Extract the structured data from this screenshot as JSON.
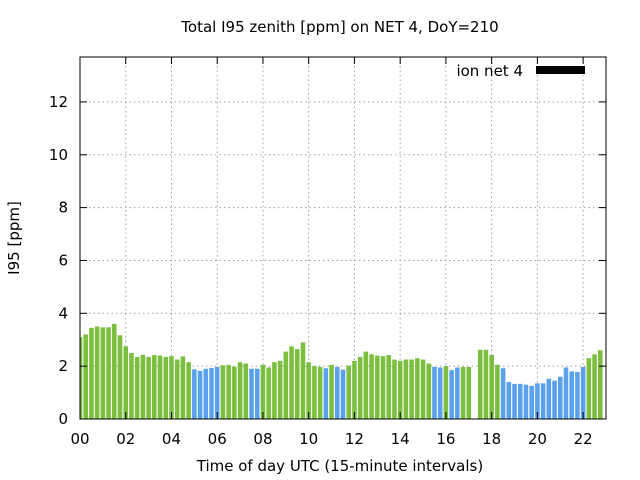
{
  "chart_data": {
    "type": "bar",
    "title": "Total I95 zenith [ppm] on NET 4, DoY=210",
    "xlabel": "Time of day UTC (15-minute intervals)",
    "ylabel": "I95 [ppm]",
    "xlim": [
      0,
      23
    ],
    "ylim": [
      0,
      13.7
    ],
    "xticks": [
      {
        "v": 0,
        "label": "00"
      },
      {
        "v": 2,
        "label": "02"
      },
      {
        "v": 4,
        "label": "04"
      },
      {
        "v": 6,
        "label": "06"
      },
      {
        "v": 8,
        "label": "08"
      },
      {
        "v": 10,
        "label": "10"
      },
      {
        "v": 12,
        "label": "12"
      },
      {
        "v": 14,
        "label": "14"
      },
      {
        "v": 16,
        "label": "16"
      },
      {
        "v": 18,
        "label": "18"
      },
      {
        "v": 20,
        "label": "20"
      },
      {
        "v": 22,
        "label": "22"
      }
    ],
    "yticks": [
      0,
      2,
      4,
      6,
      8,
      10,
      12
    ],
    "grid": true,
    "legend": {
      "label": "ion net 4",
      "position": "top-right",
      "color": "#000000"
    },
    "colors": {
      "green": "#7cbf40",
      "blue": "#5aa0ea"
    },
    "bar_width_hours": 0.2,
    "bars": [
      {
        "x": 0.0,
        "v": 3.1,
        "c": "green"
      },
      {
        "x": 0.25,
        "v": 3.2,
        "c": "green"
      },
      {
        "x": 0.5,
        "v": 3.45,
        "c": "green"
      },
      {
        "x": 0.75,
        "v": 3.5,
        "c": "green"
      },
      {
        "x": 1.0,
        "v": 3.47,
        "c": "green"
      },
      {
        "x": 1.25,
        "v": 3.47,
        "c": "green"
      },
      {
        "x": 1.5,
        "v": 3.6,
        "c": "green"
      },
      {
        "x": 1.75,
        "v": 3.17,
        "c": "green"
      },
      {
        "x": 2.0,
        "v": 2.75,
        "c": "green"
      },
      {
        "x": 2.25,
        "v": 2.5,
        "c": "green"
      },
      {
        "x": 2.5,
        "v": 2.35,
        "c": "green"
      },
      {
        "x": 2.75,
        "v": 2.43,
        "c": "green"
      },
      {
        "x": 3.0,
        "v": 2.35,
        "c": "green"
      },
      {
        "x": 3.25,
        "v": 2.42,
        "c": "green"
      },
      {
        "x": 3.5,
        "v": 2.4,
        "c": "green"
      },
      {
        "x": 3.75,
        "v": 2.35,
        "c": "green"
      },
      {
        "x": 4.0,
        "v": 2.38,
        "c": "green"
      },
      {
        "x": 4.25,
        "v": 2.25,
        "c": "green"
      },
      {
        "x": 4.5,
        "v": 2.37,
        "c": "green"
      },
      {
        "x": 4.75,
        "v": 2.15,
        "c": "green"
      },
      {
        "x": 5.0,
        "v": 1.88,
        "c": "blue"
      },
      {
        "x": 5.25,
        "v": 1.82,
        "c": "blue"
      },
      {
        "x": 5.5,
        "v": 1.9,
        "c": "blue"
      },
      {
        "x": 5.75,
        "v": 1.93,
        "c": "blue"
      },
      {
        "x": 6.0,
        "v": 1.97,
        "c": "blue"
      },
      {
        "x": 6.25,
        "v": 2.03,
        "c": "green"
      },
      {
        "x": 6.5,
        "v": 2.05,
        "c": "green"
      },
      {
        "x": 6.75,
        "v": 1.98,
        "c": "green"
      },
      {
        "x": 7.0,
        "v": 2.15,
        "c": "green"
      },
      {
        "x": 7.25,
        "v": 2.1,
        "c": "green"
      },
      {
        "x": 7.5,
        "v": 1.9,
        "c": "blue"
      },
      {
        "x": 7.75,
        "v": 1.9,
        "c": "blue"
      },
      {
        "x": 8.0,
        "v": 2.05,
        "c": "green"
      },
      {
        "x": 8.25,
        "v": 1.95,
        "c": "green"
      },
      {
        "x": 8.5,
        "v": 2.15,
        "c": "green"
      },
      {
        "x": 8.75,
        "v": 2.2,
        "c": "green"
      },
      {
        "x": 9.0,
        "v": 2.55,
        "c": "green"
      },
      {
        "x": 9.25,
        "v": 2.75,
        "c": "green"
      },
      {
        "x": 9.5,
        "v": 2.65,
        "c": "green"
      },
      {
        "x": 9.75,
        "v": 2.9,
        "c": "green"
      },
      {
        "x": 10.0,
        "v": 2.15,
        "c": "green"
      },
      {
        "x": 10.25,
        "v": 2.0,
        "c": "green"
      },
      {
        "x": 10.5,
        "v": 1.97,
        "c": "green"
      },
      {
        "x": 10.75,
        "v": 1.92,
        "c": "blue"
      },
      {
        "x": 11.0,
        "v": 2.05,
        "c": "green"
      },
      {
        "x": 11.25,
        "v": 1.97,
        "c": "blue"
      },
      {
        "x": 11.5,
        "v": 1.87,
        "c": "blue"
      },
      {
        "x": 11.75,
        "v": 2.02,
        "c": "green"
      },
      {
        "x": 12.0,
        "v": 2.2,
        "c": "green"
      },
      {
        "x": 12.25,
        "v": 2.35,
        "c": "green"
      },
      {
        "x": 12.5,
        "v": 2.55,
        "c": "green"
      },
      {
        "x": 12.75,
        "v": 2.45,
        "c": "green"
      },
      {
        "x": 13.0,
        "v": 2.4,
        "c": "green"
      },
      {
        "x": 13.25,
        "v": 2.38,
        "c": "green"
      },
      {
        "x": 13.5,
        "v": 2.42,
        "c": "green"
      },
      {
        "x": 13.75,
        "v": 2.25,
        "c": "green"
      },
      {
        "x": 14.0,
        "v": 2.2,
        "c": "green"
      },
      {
        "x": 14.25,
        "v": 2.25,
        "c": "green"
      },
      {
        "x": 14.5,
        "v": 2.25,
        "c": "green"
      },
      {
        "x": 14.75,
        "v": 2.3,
        "c": "green"
      },
      {
        "x": 15.0,
        "v": 2.25,
        "c": "green"
      },
      {
        "x": 15.25,
        "v": 2.1,
        "c": "green"
      },
      {
        "x": 15.5,
        "v": 1.97,
        "c": "blue"
      },
      {
        "x": 15.75,
        "v": 1.95,
        "c": "blue"
      },
      {
        "x": 16.0,
        "v": 2.0,
        "c": "green"
      },
      {
        "x": 16.25,
        "v": 1.85,
        "c": "blue"
      },
      {
        "x": 16.5,
        "v": 1.95,
        "c": "blue"
      },
      {
        "x": 16.75,
        "v": 1.97,
        "c": "green"
      },
      {
        "x": 17.0,
        "v": 1.97,
        "c": "green"
      },
      {
        "x": 17.5,
        "v": 2.62,
        "c": "green"
      },
      {
        "x": 17.75,
        "v": 2.62,
        "c": "green"
      },
      {
        "x": 18.0,
        "v": 2.42,
        "c": "green"
      },
      {
        "x": 18.25,
        "v": 2.05,
        "c": "green"
      },
      {
        "x": 18.5,
        "v": 1.92,
        "c": "blue"
      },
      {
        "x": 18.75,
        "v": 1.4,
        "c": "blue"
      },
      {
        "x": 19.0,
        "v": 1.33,
        "c": "blue"
      },
      {
        "x": 19.25,
        "v": 1.33,
        "c": "blue"
      },
      {
        "x": 19.5,
        "v": 1.3,
        "c": "blue"
      },
      {
        "x": 19.75,
        "v": 1.25,
        "c": "blue"
      },
      {
        "x": 20.0,
        "v": 1.35,
        "c": "blue"
      },
      {
        "x": 20.25,
        "v": 1.35,
        "c": "blue"
      },
      {
        "x": 20.5,
        "v": 1.52,
        "c": "blue"
      },
      {
        "x": 20.75,
        "v": 1.45,
        "c": "blue"
      },
      {
        "x": 21.0,
        "v": 1.6,
        "c": "blue"
      },
      {
        "x": 21.25,
        "v": 1.95,
        "c": "blue"
      },
      {
        "x": 21.5,
        "v": 1.8,
        "c": "blue"
      },
      {
        "x": 21.75,
        "v": 1.78,
        "c": "blue"
      },
      {
        "x": 22.0,
        "v": 1.97,
        "c": "blue"
      },
      {
        "x": 22.25,
        "v": 2.3,
        "c": "green"
      },
      {
        "x": 22.5,
        "v": 2.45,
        "c": "green"
      },
      {
        "x": 22.75,
        "v": 2.6,
        "c": "green"
      }
    ]
  }
}
